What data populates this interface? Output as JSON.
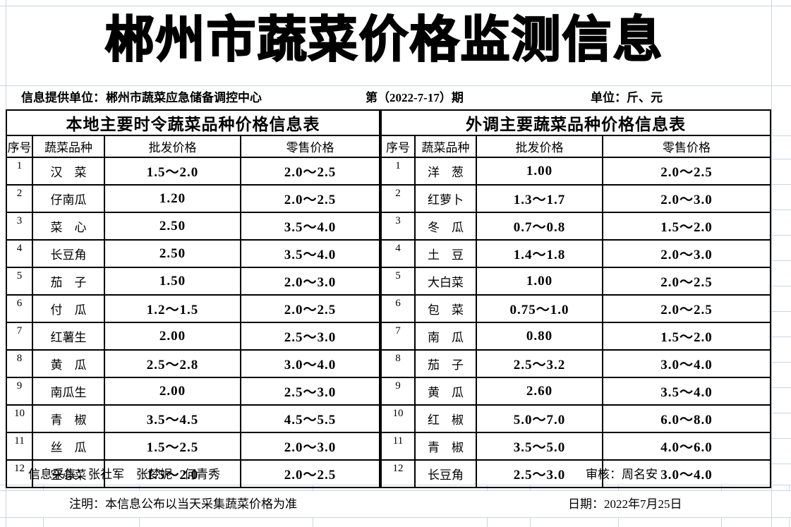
{
  "title": "郴州市蔬菜价格监测信息",
  "info_bar": {
    "provider_label": "信息提供单位：",
    "provider": "郴州市蔬菜应急储备调控中心",
    "issue": "第（2022-7-17）期",
    "unit": "单位：斤、元"
  },
  "tables": {
    "local": {
      "title": "本地主要时令蔬菜品种价格信息表",
      "headers": [
        "序号",
        "蔬菜品种",
        "批发价格",
        "零售价格"
      ],
      "rows": [
        {
          "no": "1",
          "name": "汉　菜",
          "wholesale": "1.5～2.0",
          "retail": "2.0～2.5"
        },
        {
          "no": "2",
          "name": "仔南瓜",
          "wholesale": "1.20",
          "retail": "2.0～2.5"
        },
        {
          "no": "3",
          "name": "菜　心",
          "wholesale": "2.50",
          "retail": "3.5～4.0"
        },
        {
          "no": "4",
          "name": "长豆角",
          "wholesale": "2.50",
          "retail": "3.5～4.0"
        },
        {
          "no": "5",
          "name": "茄　子",
          "wholesale": "1.50",
          "retail": "2.0～3.0"
        },
        {
          "no": "6",
          "name": "付　瓜",
          "wholesale": "1.2～1.5",
          "retail": "2.0～2.5"
        },
        {
          "no": "7",
          "name": "红薯生",
          "wholesale": "2.00",
          "retail": "2.5～3.0"
        },
        {
          "no": "8",
          "name": "黄　瓜",
          "wholesale": "2.5～2.8",
          "retail": "3.0～4.0"
        },
        {
          "no": "9",
          "name": "南瓜生",
          "wholesale": "2.00",
          "retail": "2.5～3.0"
        },
        {
          "no": "10",
          "name": "青　椒",
          "wholesale": "3.5～4.5",
          "retail": "4.5～5.5"
        },
        {
          "no": "11",
          "name": "丝　瓜",
          "wholesale": "1.5～2.5",
          "retail": "2.0～3.0"
        },
        {
          "no": "12",
          "name": "空心菜",
          "wholesale": "1.5～2.0",
          "retail": "2.0～2.5"
        }
      ]
    },
    "external": {
      "title": "外调主要蔬菜品种价格信息表",
      "headers": [
        "序号",
        "蔬菜品种",
        "批发价格",
        "零售价格"
      ],
      "rows": [
        {
          "no": "1",
          "name": "洋　葱",
          "wholesale": "1.00",
          "retail": "2.0～2.5"
        },
        {
          "no": "2",
          "name": "红萝卜",
          "wholesale": "1.3～1.7",
          "retail": "2.0～3.0"
        },
        {
          "no": "3",
          "name": "冬　瓜",
          "wholesale": "0.7～0.8",
          "retail": "1.5～2.0"
        },
        {
          "no": "4",
          "name": "土　豆",
          "wholesale": "1.4～1.8",
          "retail": "2.0～3.0"
        },
        {
          "no": "5",
          "name": "大白菜",
          "wholesale": "1.00",
          "retail": "2.0～2.5"
        },
        {
          "no": "6",
          "name": "包　菜",
          "wholesale": "0.75～1.0",
          "retail": "2.0～2.5"
        },
        {
          "no": "7",
          "name": "南　瓜",
          "wholesale": "0.80",
          "retail": "1.5～2.0"
        },
        {
          "no": "8",
          "name": "茄　子",
          "wholesale": "2.5～3.2",
          "retail": "3.0～4.0"
        },
        {
          "no": "9",
          "name": "黄　瓜",
          "wholesale": "2.60",
          "retail": "3.5～4.0"
        },
        {
          "no": "10",
          "name": "红　椒",
          "wholesale": "5.0～7.0",
          "retail": "6.0～8.0"
        },
        {
          "no": "11",
          "name": "青　椒",
          "wholesale": "3.5～5.0",
          "retail": "4.0～6.0"
        },
        {
          "no": "12",
          "name": "长豆角",
          "wholesale": "2.5～3.0",
          "retail": "3.0～4.0"
        }
      ]
    }
  },
  "footer": {
    "collectors": "信息采集：张社军　张梦妮　何青秀",
    "reviewer": "审核：周名安",
    "note": "注明：本信息公布以当天采集蔬菜价格为准",
    "date": "日期：2022年7月25日"
  },
  "colors": {
    "text": "#000000",
    "table_border": "#000000",
    "gridline": "#ccd4e2",
    "background": "#ffffff"
  }
}
